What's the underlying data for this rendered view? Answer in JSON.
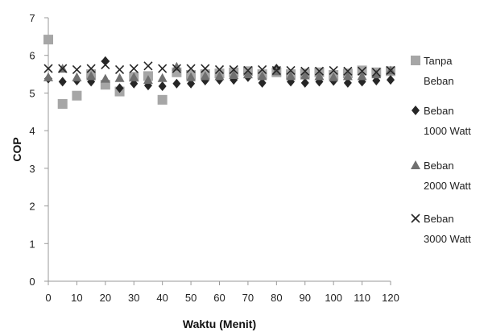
{
  "chart_data": {
    "type": "scatter",
    "title": "",
    "xlabel": "Waktu (Menit)",
    "ylabel": "COP",
    "xlim": [
      0,
      120
    ],
    "ylim": [
      0,
      7
    ],
    "x_ticks": [
      0,
      10,
      20,
      30,
      40,
      50,
      60,
      70,
      80,
      90,
      100,
      110,
      120
    ],
    "y_ticks": [
      0,
      1,
      2,
      3,
      4,
      5,
      6,
      7
    ],
    "grid": false,
    "legend_position": "right",
    "series": [
      {
        "name": [
          "Tanpa",
          "Beban"
        ],
        "marker": "square",
        "color": "#a6a6a6",
        "x": [
          0,
          5,
          10,
          15,
          20,
          25,
          30,
          35,
          40,
          45,
          50,
          55,
          60,
          65,
          70,
          75,
          80,
          85,
          90,
          95,
          100,
          105,
          110,
          115,
          120
        ],
        "y": [
          6.42,
          4.71,
          4.93,
          5.5,
          5.22,
          5.04,
          5.43,
          5.45,
          4.82,
          5.55,
          5.48,
          5.5,
          5.52,
          5.55,
          5.58,
          5.5,
          5.55,
          5.5,
          5.52,
          5.55,
          5.48,
          5.52,
          5.6,
          5.55,
          5.58
        ]
      },
      {
        "name": [
          "Beban",
          "1000 Watt"
        ],
        "marker": "diamond",
        "color": "#262626",
        "x": [
          0,
          5,
          10,
          15,
          20,
          25,
          30,
          35,
          40,
          45,
          50,
          55,
          60,
          65,
          70,
          75,
          80,
          85,
          90,
          95,
          100,
          105,
          110,
          115,
          120
        ],
        "y": [
          5.38,
          5.3,
          5.33,
          5.3,
          5.85,
          5.13,
          5.25,
          5.2,
          5.18,
          5.25,
          5.25,
          5.33,
          5.35,
          5.35,
          5.42,
          5.27,
          5.65,
          5.3,
          5.27,
          5.3,
          5.32,
          5.27,
          5.3,
          5.33,
          5.35
        ]
      },
      {
        "name": [
          "Beban",
          "2000 Watt"
        ],
        "marker": "triangle",
        "color": "#707070",
        "x": [
          0,
          5,
          10,
          15,
          20,
          25,
          30,
          35,
          40,
          45,
          50,
          55,
          60,
          65,
          70,
          75,
          80,
          85,
          90,
          95,
          100,
          105,
          110,
          115,
          120
        ],
        "y": [
          5.42,
          5.65,
          5.42,
          5.45,
          5.38,
          5.4,
          5.42,
          5.35,
          5.4,
          5.7,
          5.42,
          5.45,
          5.45,
          5.48,
          5.5,
          5.45,
          5.58,
          5.45,
          5.47,
          5.45,
          5.42,
          5.45,
          5.45,
          5.5,
          5.6
        ]
      },
      {
        "name": [
          "Beban",
          "3000 Watt"
        ],
        "marker": "x",
        "color": "#262626",
        "x": [
          0,
          5,
          10,
          15,
          20,
          25,
          30,
          35,
          40,
          45,
          50,
          55,
          60,
          65,
          70,
          75,
          80,
          85,
          90,
          95,
          100,
          105,
          110,
          115,
          120
        ],
        "y": [
          5.65,
          5.65,
          5.62,
          5.65,
          5.75,
          5.62,
          5.65,
          5.72,
          5.65,
          5.65,
          5.65,
          5.65,
          5.62,
          5.62,
          5.6,
          5.62,
          5.6,
          5.6,
          5.58,
          5.58,
          5.6,
          5.58,
          5.58,
          5.55,
          5.6
        ]
      }
    ]
  }
}
